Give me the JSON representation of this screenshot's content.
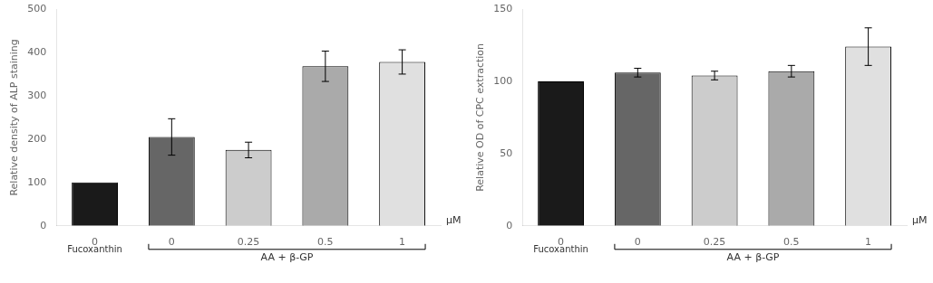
{
  "chart_data": [
    {
      "type": "bar",
      "ylabel": "Relative density of ALP staining",
      "categories": [
        "0",
        "0",
        "0.25",
        "0.5",
        "1"
      ],
      "values": [
        100,
        205,
        175,
        368,
        378
      ],
      "errors": [
        0,
        42,
        18,
        35,
        28
      ],
      "colors": [
        "#1a1a1a",
        "#666666",
        "#cccccc",
        "#aaaaaa",
        "#e0e0e0"
      ],
      "ylim": [
        0,
        500
      ],
      "yticks": [
        0,
        100,
        200,
        300,
        400,
        500
      ],
      "grid": false,
      "annotations": [
        "μM",
        "Fucoxanthin",
        "AA + β-GP"
      ]
    },
    {
      "type": "bar",
      "ylabel": "Relative OD of CPC extraction",
      "categories": [
        "0",
        "0",
        "0.25",
        "0.5",
        "1"
      ],
      "values": [
        100,
        106,
        104,
        107,
        124
      ],
      "errors": [
        0,
        3,
        3,
        4,
        13
      ],
      "colors": [
        "#1a1a1a",
        "#666666",
        "#cccccc",
        "#aaaaaa",
        "#e0e0e0"
      ],
      "ylim": [
        0,
        150
      ],
      "yticks": [
        0,
        50,
        100,
        150
      ],
      "grid": false,
      "annotations": [
        "μM",
        "Fucoxanthin",
        "AA + β-GP"
      ]
    }
  ]
}
